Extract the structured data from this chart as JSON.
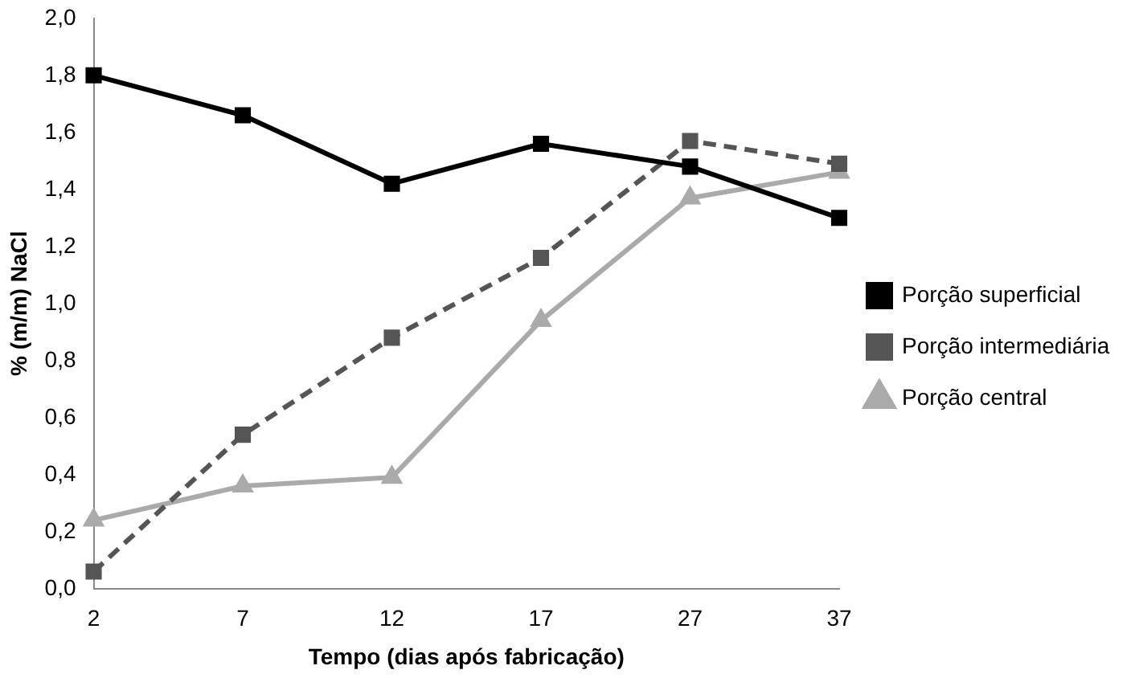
{
  "chart_data": {
    "type": "line",
    "xlabel": "Tempo (dias após fabricação)",
    "ylabel": "% (m/m) NaCl",
    "categories": [
      "2",
      "7",
      "12",
      "17",
      "27",
      "37"
    ],
    "ylim": [
      0,
      2
    ],
    "yticks": [
      {
        "value": 0,
        "label": "0,0"
      },
      {
        "value": 0.2,
        "label": "0,2"
      },
      {
        "value": 0.4,
        "label": "0,4"
      },
      {
        "value": 0.6,
        "label": "0,6"
      },
      {
        "value": 0.8,
        "label": "0,8"
      },
      {
        "value": 1,
        "label": "1,0"
      },
      {
        "value": 1.2,
        "label": "1,2"
      },
      {
        "value": 1.4,
        "label": "1,4"
      },
      {
        "value": 1.6,
        "label": "1,6"
      },
      {
        "value": 1.8,
        "label": "1,8"
      },
      {
        "value": 2,
        "label": "2,0"
      }
    ],
    "grid": false,
    "legend": "right",
    "series": [
      {
        "name": "Porção superficial",
        "color": "#000000",
        "marker": "square",
        "line_style": "solid",
        "values": [
          1.8,
          1.66,
          1.42,
          1.56,
          1.48,
          1.3
        ]
      },
      {
        "name": "Porção intermediária",
        "color": "#555555",
        "marker": "square",
        "line_style": "dashed",
        "values": [
          0.06,
          0.54,
          0.88,
          1.16,
          1.57,
          1.49
        ]
      },
      {
        "name": "Porção central",
        "color": "#aaaaaa",
        "marker": "triangle",
        "line_style": "solid",
        "values": [
          0.24,
          0.36,
          0.39,
          0.94,
          1.37,
          1.46
        ]
      }
    ]
  }
}
